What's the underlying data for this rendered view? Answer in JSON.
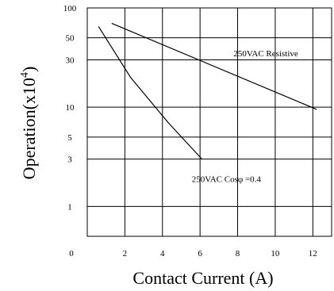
{
  "chart_data": {
    "type": "line",
    "xlabel": "Contact Current (A)",
    "ylabel": "Operation(x10",
    "ylabel_superscript": "4",
    "ylabel_close": ")",
    "x_ticks": [
      0,
      2,
      4,
      6,
      8,
      10,
      12
    ],
    "x_tick_labels": [
      "0",
      "2",
      "4",
      "6",
      "8",
      "10",
      "12"
    ],
    "y_ticks": [
      1,
      3,
      5,
      10,
      30,
      50,
      100
    ],
    "y_tick_labels": [
      "1",
      "3",
      "5",
      "10",
      "30",
      "50",
      "100"
    ],
    "xlim": [
      0,
      13
    ],
    "ylim": [
      0.5,
      100
    ],
    "y_scale": "log",
    "grid": true,
    "series": [
      {
        "name": "250VAC Resistive",
        "x": [
          1.3,
          12.2
        ],
        "y": [
          70,
          9.5
        ]
      },
      {
        "name": "250VAC Cosφ =0.4",
        "x": [
          0.6,
          1.3,
          2.3,
          4.3,
          6.1
        ],
        "y": [
          65,
          40,
          20,
          7,
          3
        ]
      }
    ],
    "annotations": [
      {
        "text": "250VAC Resistive",
        "x": 9.5,
        "y": 35
      },
      {
        "text": "250VAC Cosφ =0.4",
        "x": 7.4,
        "y": 1.9
      }
    ]
  }
}
